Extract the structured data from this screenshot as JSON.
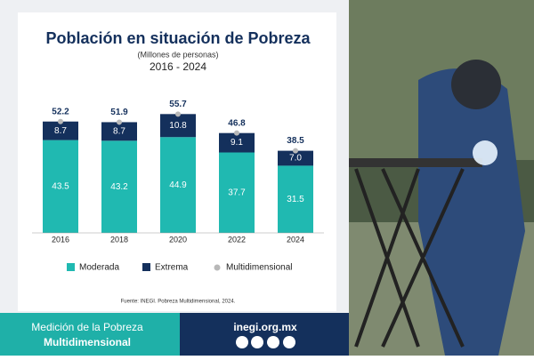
{
  "chart_data": {
    "type": "stacked_bar",
    "title": "Población en situación de Pobreza",
    "subtitle": "(Millones de personas)",
    "period": "2016 - 2024",
    "categories": [
      "2016",
      "2018",
      "2020",
      "2022",
      "2024"
    ],
    "series": [
      {
        "name": "Moderada",
        "color": "#20b9b1",
        "values": [
          43.5,
          43.2,
          44.9,
          37.7,
          31.5
        ]
      },
      {
        "name": "Extrema",
        "color": "#14305c",
        "values": [
          8.7,
          8.7,
          10.8,
          9.1,
          7.0
        ],
        "value_labels": [
          "8.7",
          "8.7",
          "10.8",
          "9.1",
          "7.0"
        ]
      },
      {
        "name": "Multidimensional",
        "color": "#b8b8b8",
        "mark": "dot",
        "values": [
          52.2,
          51.9,
          55.7,
          46.8,
          38.5
        ]
      }
    ],
    "legend": "bottom",
    "source": "Fuente: INEGI. Pobreza Multidimensional, 2024."
  },
  "banner": {
    "line1": "Medición de la Pobreza",
    "line2": "Multidimensional",
    "url": "inegi.org.mx"
  }
}
